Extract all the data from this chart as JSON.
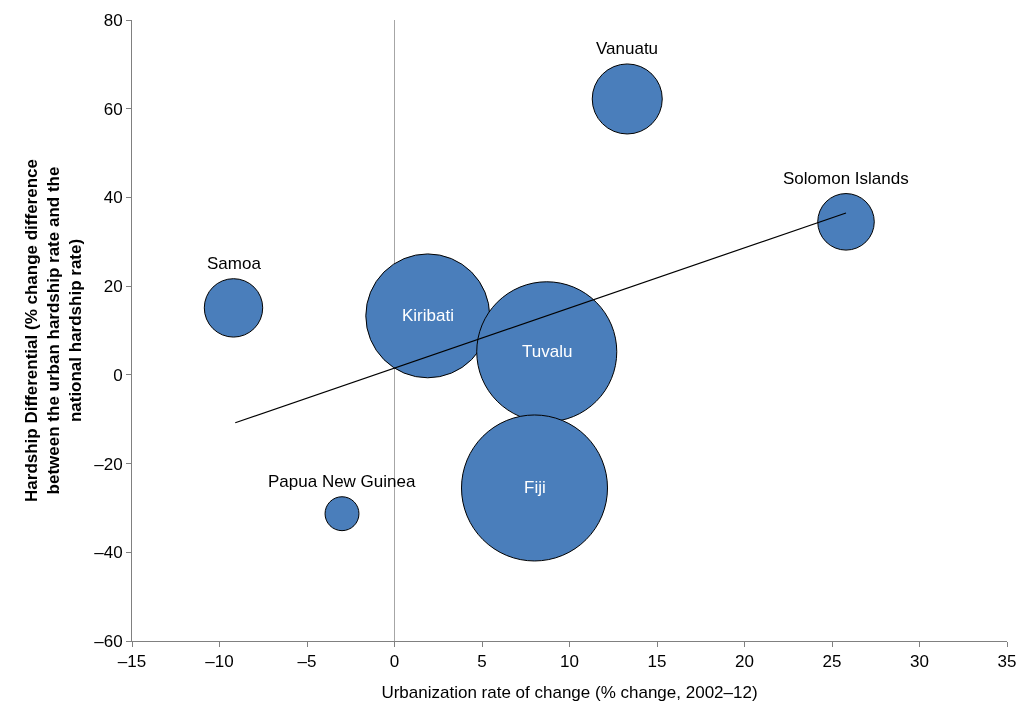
{
  "chart_data": {
    "type": "bubble",
    "xlabel": "Urbanization rate of change (% change, 2002–12)",
    "ylabel": "Hardship Differential (% change difference between the urban hardship rate and the national hardship rate)",
    "xlim": [
      -15,
      35
    ],
    "xticks": [
      {
        "value": -15,
        "label": "–15"
      },
      {
        "value": -10,
        "label": "–10"
      },
      {
        "value": -5,
        "label": "–5"
      },
      0,
      5,
      10,
      15,
      20,
      25,
      30,
      35
    ],
    "ylim": [
      -60,
      80
    ],
    "yticks": [
      {
        "value": -60,
        "label": "–60"
      },
      {
        "value": -40,
        "label": "–40"
      },
      {
        "value": -20,
        "label": "–20"
      },
      0,
      20,
      40,
      60,
      80
    ],
    "series": [
      {
        "color": "#4a7ebb",
        "x": [
          13.3,
          25.8,
          -9.2,
          1.9,
          8.7,
          8.0,
          -3.0
        ],
        "values": [
          62.2,
          34.5,
          15.1,
          13.3,
          5.2,
          -25.5,
          -31.3
        ],
        "sizes": [
          0.23,
          0.15,
          0.16,
          0.72,
          0.92,
          1,
          0.054
        ]
      },
      {
        "type": "line",
        "color": "#000000",
        "x": [
          -9.1,
          25.8
        ],
        "values": [
          -10.8,
          36.5
        ]
      }
    ],
    "annotations": [
      {
        "text": "Vanuatu",
        "x": 13.3,
        "y": 62.2
      },
      {
        "text": "Solomon Islands",
        "x": 25.8,
        "y": 34.5
      },
      {
        "text": "Samoa",
        "x": -9.2,
        "y": 15.1
      },
      {
        "text": "Kiribati",
        "x": 1.9,
        "y": 13.3
      },
      {
        "text": "Tuvalu",
        "x": 8.7,
        "y": 5.2
      },
      {
        "text": "Fiji",
        "x": 8.0,
        "y": -25.5
      },
      {
        "text": "Papua New Guinea",
        "x": -3.0,
        "y": -31.3
      }
    ],
    "ref_lines": [
      {
        "axis": "x",
        "value": 0,
        "color": "#a6a6a6"
      }
    ]
  }
}
